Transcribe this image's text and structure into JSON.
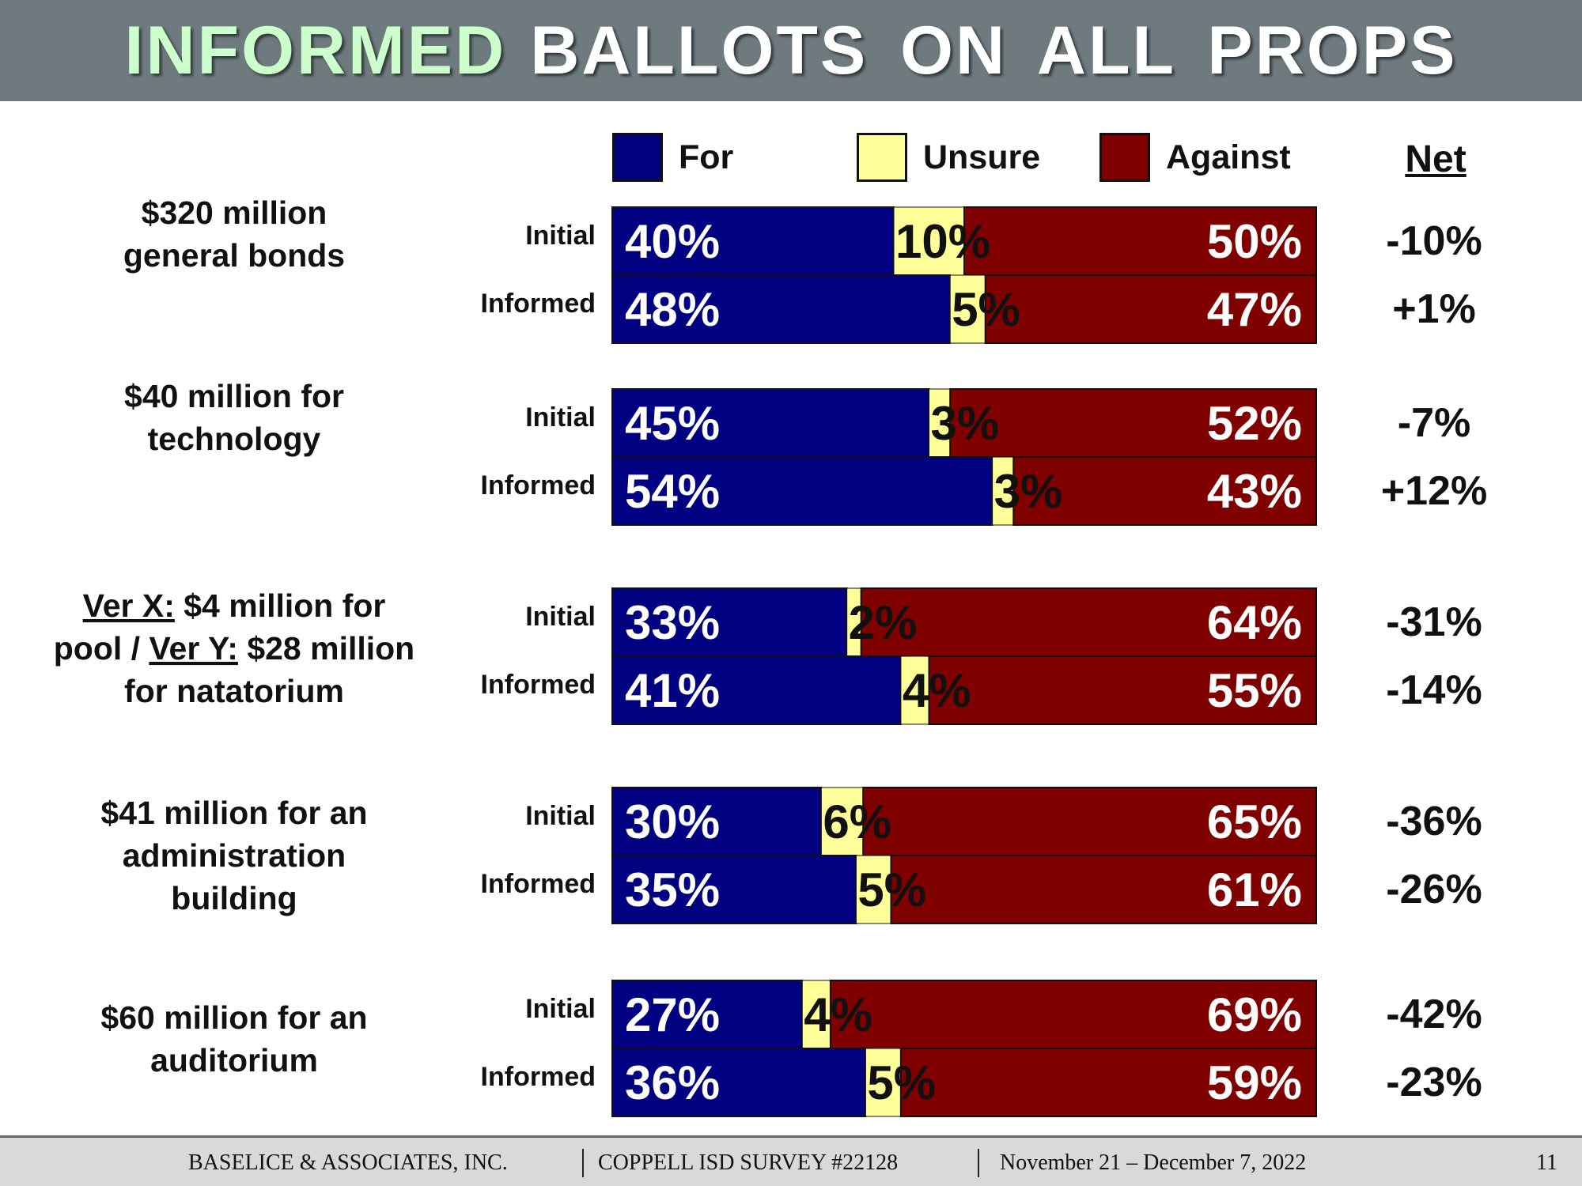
{
  "header": {
    "title_accent": "INFORMED",
    "title_rest": "BALLOTS ON ALL PROPS"
  },
  "colors": {
    "for": "#000080",
    "unsure": "#ffff99",
    "against": "#800000",
    "header_bg": "#6e7a7e",
    "title_accent": "#ccffcc"
  },
  "legend": {
    "for": "For",
    "unsure": "Unsure",
    "against": "Against",
    "net": "Net"
  },
  "chart_data": {
    "type": "bar",
    "orientation": "horizontal-stacked-100",
    "series_names": [
      "For",
      "Unsure",
      "Against"
    ],
    "groups": [
      {
        "label_lines": [
          [
            {
              "text": "$320 million"
            }
          ],
          [
            {
              "text": "general bonds"
            }
          ]
        ],
        "rows": [
          {
            "label": "Initial",
            "for": 40,
            "unsure": 10,
            "against": 50,
            "net": "-10%"
          },
          {
            "label": "Informed",
            "for": 48,
            "unsure": 5,
            "against": 47,
            "net": "+1%"
          }
        ]
      },
      {
        "label_lines": [
          [
            {
              "text": "$40 million for"
            }
          ],
          [
            {
              "text": "technology"
            }
          ]
        ],
        "rows": [
          {
            "label": "Initial",
            "for": 45,
            "unsure": 3,
            "against": 52,
            "net": "-7%"
          },
          {
            "label": "Informed",
            "for": 54,
            "unsure": 3,
            "against": 43,
            "net": "+12%"
          }
        ]
      },
      {
        "label_lines": [
          [
            {
              "text": "Ver X:",
              "u": true
            },
            {
              "text": " $4 million for"
            }
          ],
          [
            {
              "text": "pool / "
            },
            {
              "text": "Ver Y:",
              "u": true
            },
            {
              "text": " $28 million"
            }
          ],
          [
            {
              "text": "for natatorium"
            }
          ]
        ],
        "rows": [
          {
            "label": "Initial",
            "for": 33,
            "unsure": 2,
            "against": 64,
            "net": "-31%"
          },
          {
            "label": "Informed",
            "for": 41,
            "unsure": 4,
            "against": 55,
            "net": "-14%"
          }
        ]
      },
      {
        "label_lines": [
          [
            {
              "text": "$41 million for an"
            }
          ],
          [
            {
              "text": "administration"
            }
          ],
          [
            {
              "text": "building"
            }
          ]
        ],
        "rows": [
          {
            "label": "Initial",
            "for": 30,
            "unsure": 6,
            "against": 65,
            "net": "-36%"
          },
          {
            "label": "Informed",
            "for": 35,
            "unsure": 5,
            "against": 61,
            "net": "-26%"
          }
        ]
      },
      {
        "label_lines": [
          [
            {
              "text": "$60 million for an"
            }
          ],
          [
            {
              "text": "auditorium"
            }
          ]
        ],
        "rows": [
          {
            "label": "Initial",
            "for": 27,
            "unsure": 4,
            "against": 69,
            "net": "-42%"
          },
          {
            "label": "Informed",
            "for": 36,
            "unsure": 5,
            "against": 59,
            "net": "-23%"
          }
        ]
      }
    ]
  },
  "footer": {
    "company": "BASELICE & ASSOCIATES, INC.",
    "survey": "COPPELL ISD SURVEY  #22128",
    "dates": "November 21 – December 7, 2022",
    "page_number": "11"
  }
}
